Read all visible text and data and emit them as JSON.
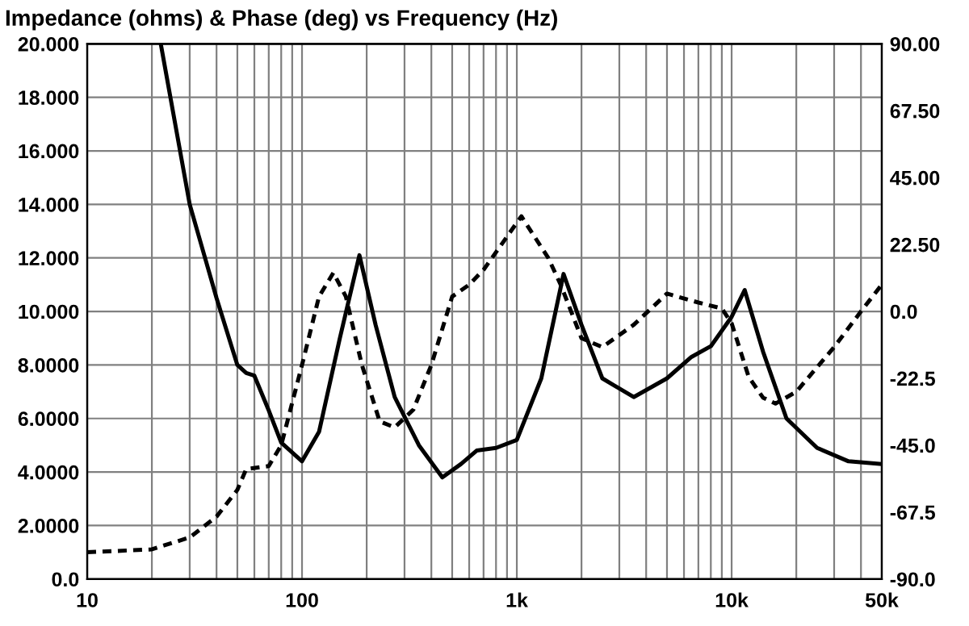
{
  "chart_data": {
    "type": "line",
    "title": "Impedance (ohms) & Phase (deg) vs Frequency (Hz)",
    "log": "x",
    "grid": true,
    "legend": false,
    "marker": "none",
    "xlim": [
      10,
      50000
    ],
    "xticks": [
      10,
      {
        "value": 20,
        "label": null
      },
      {
        "value": 30,
        "label": null
      },
      {
        "value": 40,
        "label": null
      },
      {
        "value": 50,
        "label": null
      },
      {
        "value": 60,
        "label": null
      },
      {
        "value": 70,
        "label": null
      },
      {
        "value": 80,
        "label": null
      },
      {
        "value": 90,
        "label": null
      },
      100,
      {
        "value": 200,
        "label": null
      },
      {
        "value": 300,
        "label": null
      },
      {
        "value": 400,
        "label": null
      },
      {
        "value": 500,
        "label": null
      },
      {
        "value": 600,
        "label": null
      },
      {
        "value": 700,
        "label": null
      },
      {
        "value": 800,
        "label": null
      },
      {
        "value": 900,
        "label": null
      },
      {
        "value": 1000,
        "label": "1k"
      },
      {
        "value": 2000,
        "label": null
      },
      {
        "value": 3000,
        "label": null
      },
      {
        "value": 4000,
        "label": null
      },
      {
        "value": 5000,
        "label": null
      },
      {
        "value": 6000,
        "label": null
      },
      {
        "value": 7000,
        "label": null
      },
      {
        "value": 8000,
        "label": null
      },
      {
        "value": 9000,
        "label": null
      },
      {
        "value": 10000,
        "label": "10k"
      },
      {
        "value": 20000,
        "label": null
      },
      {
        "value": 30000,
        "label": null
      },
      {
        "value": 40000,
        "label": null
      },
      {
        "value": 50000,
        "label": "50k"
      }
    ],
    "ylim": [
      0,
      20
    ],
    "yticks": [
      {
        "value": 0,
        "label": "0.0"
      },
      {
        "value": 2,
        "label": "2.0000"
      },
      {
        "value": 4,
        "label": "4.0000"
      },
      {
        "value": 6,
        "label": "6.0000"
      },
      {
        "value": 8,
        "label": "8.0000"
      },
      {
        "value": 10,
        "label": "10.000"
      },
      {
        "value": 12,
        "label": "12.000"
      },
      {
        "value": 14,
        "label": "14.000"
      },
      {
        "value": 16,
        "label": "16.000"
      },
      {
        "value": 18,
        "label": "18.000"
      },
      {
        "value": 20,
        "label": "20.000"
      }
    ],
    "y2lim": [
      -90,
      90
    ],
    "y2ticks": [
      {
        "value": -90,
        "label": "-90.0"
      },
      {
        "value": -67.5,
        "label": "-67.5"
      },
      {
        "value": -45,
        "label": "-45.0"
      },
      {
        "value": -22.5,
        "label": "-22.5"
      },
      {
        "value": 0,
        "label": "0.0"
      },
      {
        "value": 22.5,
        "label": "22.50"
      },
      {
        "value": 45,
        "label": "45.00"
      },
      {
        "value": 67.5,
        "label": "67.50"
      },
      {
        "value": 90,
        "label": "90.00"
      }
    ],
    "series": [
      {
        "color": "#000000",
        "line_style": "solid",
        "x": [
          22,
          30,
          40,
          50,
          55,
          60,
          70,
          80,
          100,
          120,
          150,
          185,
          220,
          270,
          350,
          450,
          550,
          650,
          800,
          1000,
          1300,
          1650,
          2000,
          2500,
          3500,
          5000,
          6500,
          8000,
          10000,
          11500,
          14000,
          18000,
          25000,
          35000,
          50000
        ],
        "values": [
          20,
          14.0,
          10.5,
          8.0,
          7.7,
          7.6,
          6.3,
          5.1,
          4.4,
          5.5,
          9.0,
          12.1,
          9.5,
          6.8,
          5.0,
          3.8,
          4.3,
          4.8,
          4.9,
          5.2,
          7.5,
          11.4,
          9.5,
          7.5,
          6.8,
          7.5,
          8.3,
          8.7,
          9.8,
          10.8,
          8.5,
          6.0,
          4.9,
          4.4,
          4.3
        ]
      },
      {
        "color": "#000000",
        "line_style": "dashed",
        "axis": "y2",
        "x": [
          10,
          20,
          30,
          40,
          50,
          55,
          70,
          80,
          100,
          120,
          140,
          160,
          190,
          230,
          270,
          330,
          400,
          500,
          600,
          700,
          1050,
          1400,
          1600,
          2000,
          2500,
          3500,
          5000,
          7000,
          9000,
          10000,
          12000,
          14000,
          16000,
          20000,
          30000,
          40000,
          50000
        ],
        "values": [
          -81,
          -80,
          -76,
          -69,
          -60,
          -53,
          -52,
          -45,
          -18,
          5,
          13,
          5,
          -18,
          -37,
          -39,
          -33,
          -18,
          5,
          9,
          14,
          32,
          18,
          9,
          -9,
          -12,
          -4.5,
          6,
          3,
          1,
          -4,
          -22,
          -29,
          -31,
          -27,
          -12,
          0,
          9
        ]
      }
    ]
  }
}
